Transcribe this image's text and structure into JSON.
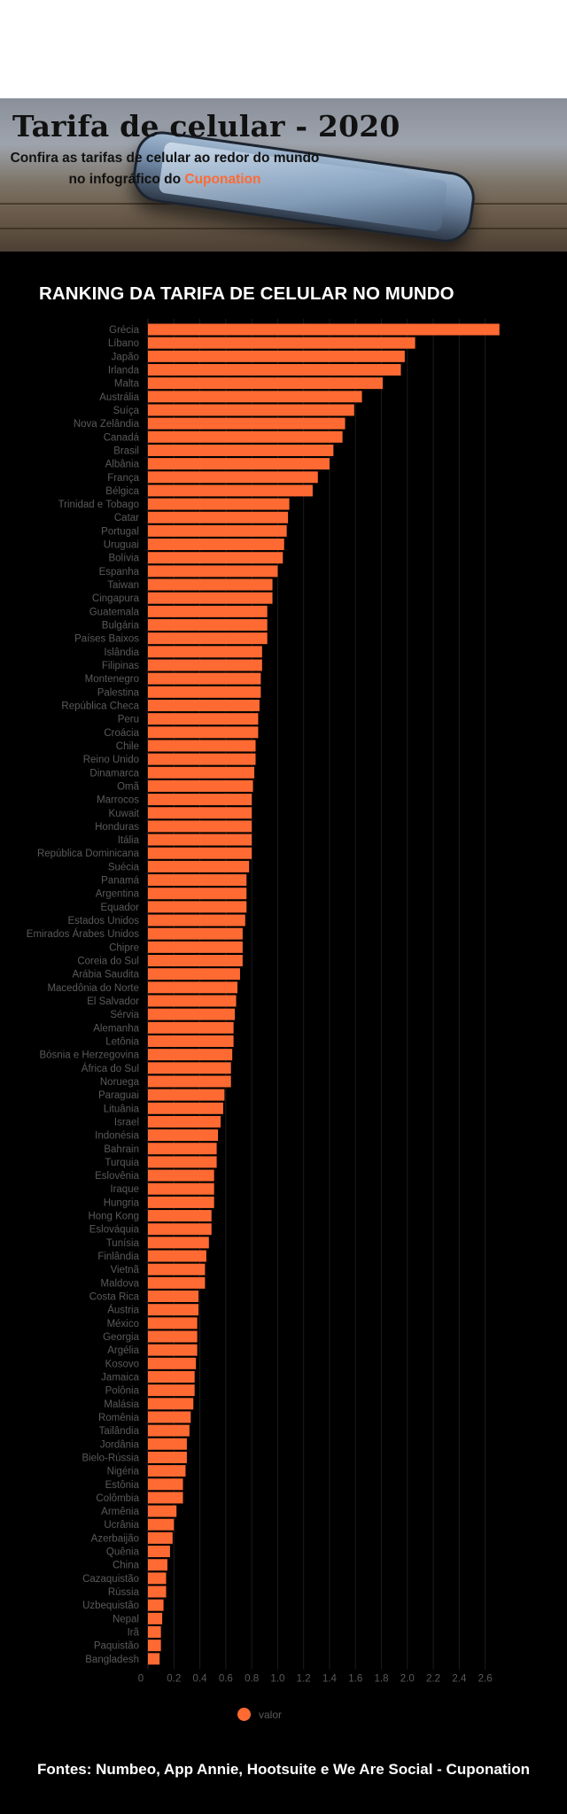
{
  "header": {
    "title": "Tarifa de celular - 2020",
    "subtitle_line1": "Confira as tarifas de celular ao redor do mundo",
    "subtitle_line2_prefix": "no infográfico do ",
    "subtitle_brand": "Cuponation"
  },
  "colors": {
    "bar": "#ff6a33",
    "brand": "#ff6a33",
    "background": "#000000",
    "label": "#5a5a5a",
    "grid": "#1c1c1c"
  },
  "chart_data": {
    "type": "bar",
    "orientation": "horizontal",
    "title": "RANKING DA TARIFA DE CELULAR NO MUNDO",
    "xlim": [
      0,
      2.8
    ],
    "xticks": [
      0,
      0.2,
      0.4,
      0.6,
      0.8,
      1.0,
      1.2,
      1.4,
      1.6,
      1.8,
      2.0,
      2.2,
      2.4,
      2.6
    ],
    "xtick_labels": [
      "0",
      "0.2",
      "0.4",
      "0.6",
      "0.8",
      "1.0",
      "1.2",
      "1.4",
      "1.6",
      "1.8",
      "2.0",
      "2.2",
      "2.4",
      "2.6"
    ],
    "grid": true,
    "legend": {
      "position": "bottom",
      "entries": [
        "valor"
      ]
    },
    "categories": [
      "Grécia",
      "Líbano",
      "Japão",
      "Irlanda",
      "Malta",
      "Austrália",
      "Suíça",
      "Nova Zelândia",
      "Canadá",
      "Brasil",
      "Albânia",
      "França",
      "Bélgica",
      "Trinidad e Tobago",
      "Catar",
      "Portugal",
      "Uruguai",
      "Bolívia",
      "Espanha",
      "Taiwan",
      "Cingapura",
      "Guatemala",
      "Bulgária",
      "Países Baixos",
      "Islândia",
      "Filipinas",
      "Montenegro",
      "Palestina",
      "República Checa",
      "Peru",
      "Croácia",
      "Chile",
      "Reino Unido",
      "Dinamarca",
      "Omã",
      "Marrocos",
      "Kuwait",
      "Honduras",
      "Itália",
      "República Dominicana",
      "Suécia",
      "Panamá",
      "Argentina",
      "Equador",
      "Estados Unidos",
      "Emirados Árabes Unidos",
      "Chipre",
      "Coreia do Sul",
      "Arábia Saudita",
      "Macedônia do Norte",
      "El Salvador",
      "Sérvia",
      "Alemanha",
      "Letônia",
      "Bósnia e Herzegovina",
      "África do Sul",
      "Noruega",
      "Paraguai",
      "Lituânia",
      "Israel",
      "Indonésia",
      "Bahrain",
      "Turquia",
      "Eslovênia",
      "Iraque",
      "Hungria",
      "Hong Kong",
      "Eslováquia",
      "Tunísia",
      "Finlândia",
      "Vietnã",
      "Maldova",
      "Costa Rica",
      "Áustria",
      "México",
      "Georgia",
      "Argélia",
      "Kosovo",
      "Jamaica",
      "Polônia",
      "Malásia",
      "Romênia",
      "Tailândia",
      "Jordânia",
      "Bielo-Rússia",
      "Nigéria",
      "Estônia",
      "Colômbia",
      "Armênia",
      "Ucrânia",
      "Azerbaijão",
      "Quênia",
      "China",
      "Cazaquistão",
      "Rússia",
      "Uzbequistão",
      "Nepal",
      "Irã",
      "Paquistão",
      "Bangladesh"
    ],
    "series": [
      {
        "name": "valor",
        "values": [
          2.71,
          2.06,
          1.98,
          1.95,
          1.81,
          1.65,
          1.59,
          1.52,
          1.5,
          1.43,
          1.4,
          1.31,
          1.27,
          1.09,
          1.08,
          1.07,
          1.05,
          1.04,
          1.0,
          0.96,
          0.96,
          0.92,
          0.92,
          0.92,
          0.88,
          0.88,
          0.87,
          0.87,
          0.86,
          0.85,
          0.85,
          0.83,
          0.83,
          0.82,
          0.81,
          0.8,
          0.8,
          0.8,
          0.8,
          0.8,
          0.78,
          0.76,
          0.76,
          0.76,
          0.75,
          0.73,
          0.73,
          0.73,
          0.71,
          0.69,
          0.68,
          0.67,
          0.66,
          0.66,
          0.65,
          0.64,
          0.64,
          0.59,
          0.58,
          0.56,
          0.54,
          0.53,
          0.53,
          0.51,
          0.51,
          0.51,
          0.49,
          0.49,
          0.47,
          0.45,
          0.44,
          0.44,
          0.39,
          0.39,
          0.38,
          0.38,
          0.38,
          0.37,
          0.36,
          0.36,
          0.35,
          0.33,
          0.32,
          0.3,
          0.3,
          0.29,
          0.27,
          0.27,
          0.22,
          0.2,
          0.19,
          0.17,
          0.15,
          0.14,
          0.14,
          0.12,
          0.11,
          0.1,
          0.1,
          0.09
        ]
      }
    ]
  },
  "footer": "Fontes: Numbeo, App Annie, Hootsuite e We Are Social - Cuponation"
}
